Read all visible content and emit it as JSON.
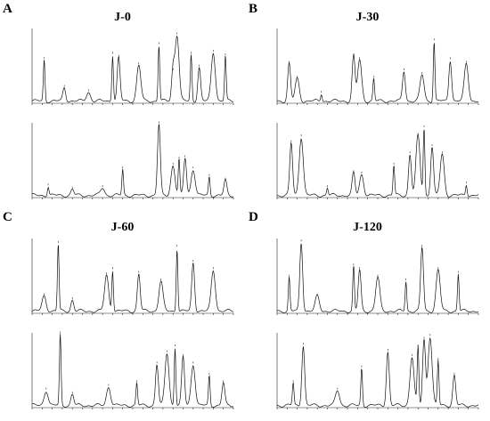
{
  "chart_data": [
    {
      "type": "line",
      "panel_letter": "A",
      "title": "J-0",
      "traces": [
        {
          "peaks": [
            [
              0.06,
              0.55
            ],
            [
              0.16,
              0.18
            ],
            [
              0.28,
              0.12
            ],
            [
              0.4,
              0.62
            ],
            [
              0.43,
              0.58
            ],
            [
              0.53,
              0.48
            ],
            [
              0.63,
              0.75
            ],
            [
              0.7,
              0.4
            ],
            [
              0.72,
              0.88
            ],
            [
              0.79,
              0.62
            ],
            [
              0.83,
              0.45
            ],
            [
              0.9,
              0.65
            ],
            [
              0.96,
              0.6
            ]
          ]
        },
        {
          "peaks": [
            [
              0.08,
              0.12
            ],
            [
              0.2,
              0.08
            ],
            [
              0.35,
              0.1
            ],
            [
              0.45,
              0.35
            ],
            [
              0.63,
              0.95
            ],
            [
              0.7,
              0.4
            ],
            [
              0.73,
              0.48
            ],
            [
              0.76,
              0.5
            ],
            [
              0.8,
              0.35
            ],
            [
              0.88,
              0.25
            ],
            [
              0.96,
              0.2
            ]
          ]
        }
      ]
    },
    {
      "type": "line",
      "panel_letter": "B",
      "title": "J-30",
      "traces": [
        {
          "peaks": [
            [
              0.06,
              0.5
            ],
            [
              0.1,
              0.3
            ],
            [
              0.22,
              0.1
            ],
            [
              0.38,
              0.6
            ],
            [
              0.41,
              0.55
            ],
            [
              0.48,
              0.3
            ],
            [
              0.63,
              0.4
            ],
            [
              0.72,
              0.35
            ],
            [
              0.78,
              0.8
            ],
            [
              0.86,
              0.55
            ],
            [
              0.94,
              0.5
            ]
          ]
        },
        {
          "peaks": [
            [
              0.07,
              0.7
            ],
            [
              0.12,
              0.78
            ],
            [
              0.25,
              0.1
            ],
            [
              0.38,
              0.3
            ],
            [
              0.42,
              0.28
            ],
            [
              0.58,
              0.4
            ],
            [
              0.66,
              0.55
            ],
            [
              0.7,
              0.8
            ],
            [
              0.73,
              0.9
            ],
            [
              0.77,
              0.65
            ],
            [
              0.82,
              0.55
            ],
            [
              0.94,
              0.15
            ]
          ]
        }
      ]
    },
    {
      "type": "line",
      "panel_letter": "C",
      "title": "J-60",
      "traces": [
        {
          "peaks": [
            [
              0.06,
              0.2
            ],
            [
              0.13,
              0.9
            ],
            [
              0.2,
              0.15
            ],
            [
              0.37,
              0.48
            ],
            [
              0.4,
              0.55
            ],
            [
              0.53,
              0.5
            ],
            [
              0.64,
              0.4
            ],
            [
              0.72,
              0.85
            ],
            [
              0.8,
              0.65
            ],
            [
              0.9,
              0.55
            ]
          ]
        },
        {
          "peaks": [
            [
              0.07,
              0.2
            ],
            [
              0.14,
              0.95
            ],
            [
              0.2,
              0.15
            ],
            [
              0.38,
              0.25
            ],
            [
              0.52,
              0.3
            ],
            [
              0.62,
              0.55
            ],
            [
              0.67,
              0.7
            ],
            [
              0.71,
              0.78
            ],
            [
              0.75,
              0.65
            ],
            [
              0.8,
              0.55
            ],
            [
              0.88,
              0.4
            ],
            [
              0.95,
              0.3
            ]
          ]
        }
      ]
    },
    {
      "type": "line",
      "panel_letter": "D",
      "title": "J-120",
      "traces": [
        {
          "peaks": [
            [
              0.06,
              0.45
            ],
            [
              0.12,
              0.92
            ],
            [
              0.2,
              0.2
            ],
            [
              0.38,
              0.6
            ],
            [
              0.41,
              0.55
            ],
            [
              0.5,
              0.45
            ],
            [
              0.64,
              0.4
            ],
            [
              0.72,
              0.85
            ],
            [
              0.8,
              0.55
            ],
            [
              0.9,
              0.5
            ]
          ]
        },
        {
          "peaks": [
            [
              0.08,
              0.3
            ],
            [
              0.13,
              0.8
            ],
            [
              0.3,
              0.2
            ],
            [
              0.42,
              0.5
            ],
            [
              0.55,
              0.72
            ],
            [
              0.67,
              0.65
            ],
            [
              0.7,
              0.78
            ],
            [
              0.73,
              0.88
            ],
            [
              0.76,
              0.92
            ],
            [
              0.8,
              0.6
            ],
            [
              0.88,
              0.4
            ]
          ]
        }
      ]
    }
  ]
}
